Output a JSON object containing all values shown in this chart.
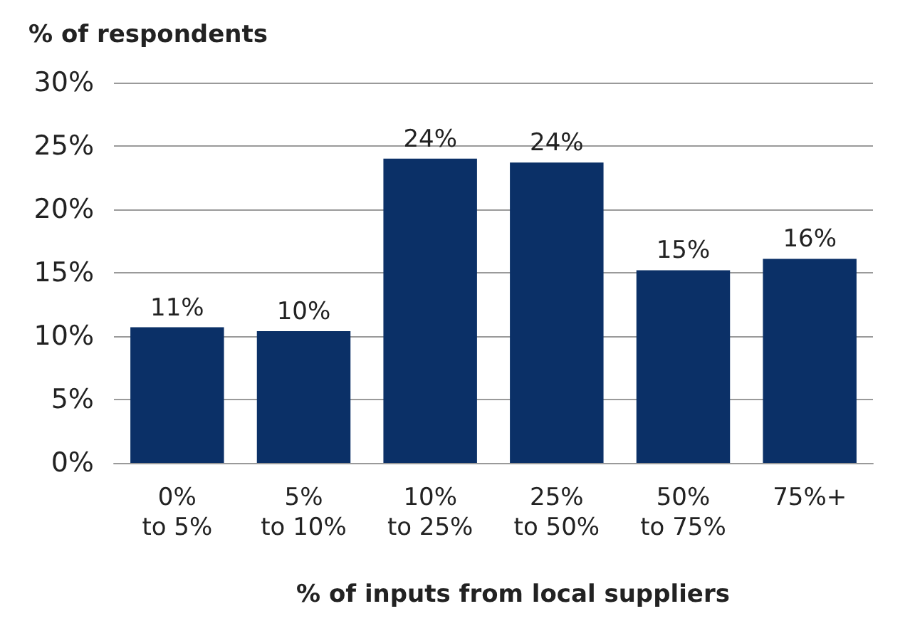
{
  "chart_data": {
    "type": "bar",
    "ylabel": "% of respondents",
    "xlabel": "% of inputs from local suppliers",
    "categories": [
      "0%\nto 5%",
      "5%\nto 10%",
      "10%\nto 25%",
      "25%\nto 50%",
      "50%\nto 75%",
      "75%+"
    ],
    "values": [
      10.7,
      10.4,
      24.0,
      23.7,
      15.2,
      16.1
    ],
    "value_labels": [
      "11%",
      "10%",
      "24%",
      "24%",
      "15%",
      "16%"
    ],
    "color": "#0b3067",
    "ylim": [
      0,
      30
    ],
    "yticks": [
      {
        "value": 0,
        "label": "0%"
      },
      {
        "value": 5,
        "label": "5%"
      },
      {
        "value": 10,
        "label": "10%"
      },
      {
        "value": 15,
        "label": "15%"
      },
      {
        "value": 20,
        "label": "20%"
      },
      {
        "value": 25,
        "label": "25%"
      },
      {
        "value": 30,
        "label": "30%"
      }
    ],
    "grid": "y"
  }
}
